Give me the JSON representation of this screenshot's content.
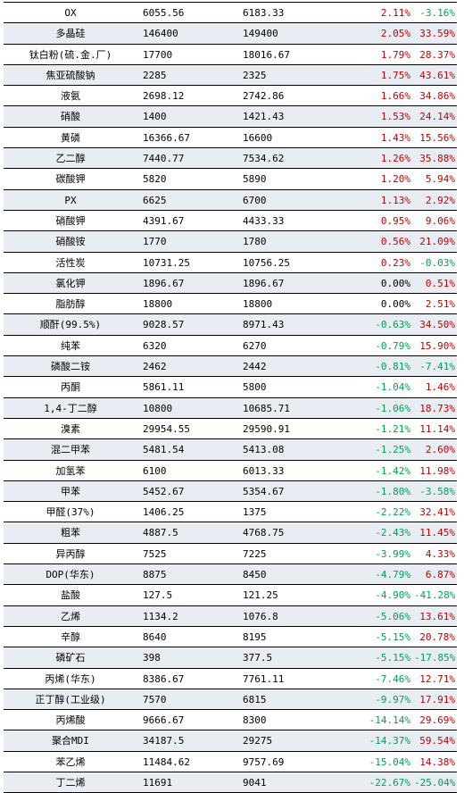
{
  "colors": {
    "positive": "#c00000",
    "negative": "#00a050",
    "neutral": "#000000"
  },
  "rows": [
    {
      "name": "OX",
      "prev": "6055.56",
      "curr": "6183.33",
      "chg": "2.11%",
      "yoy": "-3.16%"
    },
    {
      "name": "多晶硅",
      "prev": "146400",
      "curr": "149400",
      "chg": "2.05%",
      "yoy": "33.59%"
    },
    {
      "name": "钛白粉(硫.金.厂)",
      "prev": "17700",
      "curr": "18016.67",
      "chg": "1.79%",
      "yoy": "28.37%"
    },
    {
      "name": "焦亚硫酸钠",
      "prev": "2285",
      "curr": "2325",
      "chg": "1.75%",
      "yoy": "43.61%"
    },
    {
      "name": "液氨",
      "prev": "2698.12",
      "curr": "2742.86",
      "chg": "1.66%",
      "yoy": "34.86%"
    },
    {
      "name": "硝酸",
      "prev": "1400",
      "curr": "1421.43",
      "chg": "1.53%",
      "yoy": "24.14%"
    },
    {
      "name": "黄磷",
      "prev": "16366.67",
      "curr": "16600",
      "chg": "1.43%",
      "yoy": "15.56%"
    },
    {
      "name": "乙二醇",
      "prev": "7440.77",
      "curr": "7534.62",
      "chg": "1.26%",
      "yoy": "35.88%"
    },
    {
      "name": "碳酸钾",
      "prev": "5820",
      "curr": "5890",
      "chg": "1.20%",
      "yoy": "5.94%"
    },
    {
      "name": "PX",
      "prev": "6625",
      "curr": "6700",
      "chg": "1.13%",
      "yoy": "2.92%"
    },
    {
      "name": "硝酸钾",
      "prev": "4391.67",
      "curr": "4433.33",
      "chg": "0.95%",
      "yoy": "9.06%"
    },
    {
      "name": "硝酸铵",
      "prev": "1770",
      "curr": "1780",
      "chg": "0.56%",
      "yoy": "21.09%"
    },
    {
      "name": "活性炭",
      "prev": "10731.25",
      "curr": "10756.25",
      "chg": "0.23%",
      "yoy": "-0.03%"
    },
    {
      "name": "氯化钾",
      "prev": "1896.67",
      "curr": "1896.67",
      "chg": "0.00%",
      "yoy": "0.51%"
    },
    {
      "name": "脂肪醇",
      "prev": "18800",
      "curr": "18800",
      "chg": "0.00%",
      "yoy": "2.51%"
    },
    {
      "name": "顺酐(99.5%)",
      "prev": "9028.57",
      "curr": "8971.43",
      "chg": "-0.63%",
      "yoy": "34.50%"
    },
    {
      "name": "纯苯",
      "prev": "6320",
      "curr": "6270",
      "chg": "-0.79%",
      "yoy": "15.90%"
    },
    {
      "name": "磷酸二铵",
      "prev": "2462",
      "curr": "2442",
      "chg": "-0.81%",
      "yoy": "-7.41%"
    },
    {
      "name": "丙酮",
      "prev": "5861.11",
      "curr": "5800",
      "chg": "-1.04%",
      "yoy": "1.46%"
    },
    {
      "name": "1,4-丁二醇",
      "prev": "10800",
      "curr": "10685.71",
      "chg": "-1.06%",
      "yoy": "18.73%"
    },
    {
      "name": "溴素",
      "prev": "29954.55",
      "curr": "29590.91",
      "chg": "-1.21%",
      "yoy": "11.14%"
    },
    {
      "name": "混二甲苯",
      "prev": "5481.54",
      "curr": "5413.08",
      "chg": "-1.25%",
      "yoy": "2.60%"
    },
    {
      "name": "加氢苯",
      "prev": "6100",
      "curr": "6013.33",
      "chg": "-1.42%",
      "yoy": "11.98%"
    },
    {
      "name": "甲苯",
      "prev": "5452.67",
      "curr": "5354.67",
      "chg": "-1.80%",
      "yoy": "-3.58%"
    },
    {
      "name": "甲醛(37%)",
      "prev": "1406.25",
      "curr": "1375",
      "chg": "-2.22%",
      "yoy": "32.41%"
    },
    {
      "name": "粗苯",
      "prev": "4887.5",
      "curr": "4768.75",
      "chg": "-2.43%",
      "yoy": "11.45%"
    },
    {
      "name": "异丙醇",
      "prev": "7525",
      "curr": "7225",
      "chg": "-3.99%",
      "yoy": "4.33%"
    },
    {
      "name": "DOP(华东)",
      "prev": "8875",
      "curr": "8450",
      "chg": "-4.79%",
      "yoy": "6.87%"
    },
    {
      "name": "盐酸",
      "prev": "127.5",
      "curr": "121.25",
      "chg": "-4.90%",
      "yoy": "-41.28%"
    },
    {
      "name": "乙烯",
      "prev": "1134.2",
      "curr": "1076.8",
      "chg": "-5.06%",
      "yoy": "13.61%"
    },
    {
      "name": "辛醇",
      "prev": "8640",
      "curr": "8195",
      "chg": "-5.15%",
      "yoy": "20.78%"
    },
    {
      "name": "磷矿石",
      "prev": "398",
      "curr": "377.5",
      "chg": "-5.15%",
      "yoy": "-17.85%"
    },
    {
      "name": "丙烯(华东)",
      "prev": "8386.67",
      "curr": "7761.11",
      "chg": "-7.46%",
      "yoy": "12.71%"
    },
    {
      "name": "正丁醇(工业级)",
      "prev": "7570",
      "curr": "6815",
      "chg": "-9.97%",
      "yoy": "17.91%"
    },
    {
      "name": "丙烯酸",
      "prev": "9666.67",
      "curr": "8300",
      "chg": "-14.14%",
      "yoy": "29.69%"
    },
    {
      "name": "聚合MDI",
      "prev": "34187.5",
      "curr": "29275",
      "chg": "-14.37%",
      "yoy": "59.54%"
    },
    {
      "name": "苯乙烯",
      "prev": "11484.62",
      "curr": "9757.69",
      "chg": "-15.04%",
      "yoy": "14.38%"
    },
    {
      "name": "丁二烯",
      "prev": "11691",
      "curr": "9041",
      "chg": "-22.67%",
      "yoy": "-25.04%"
    }
  ]
}
